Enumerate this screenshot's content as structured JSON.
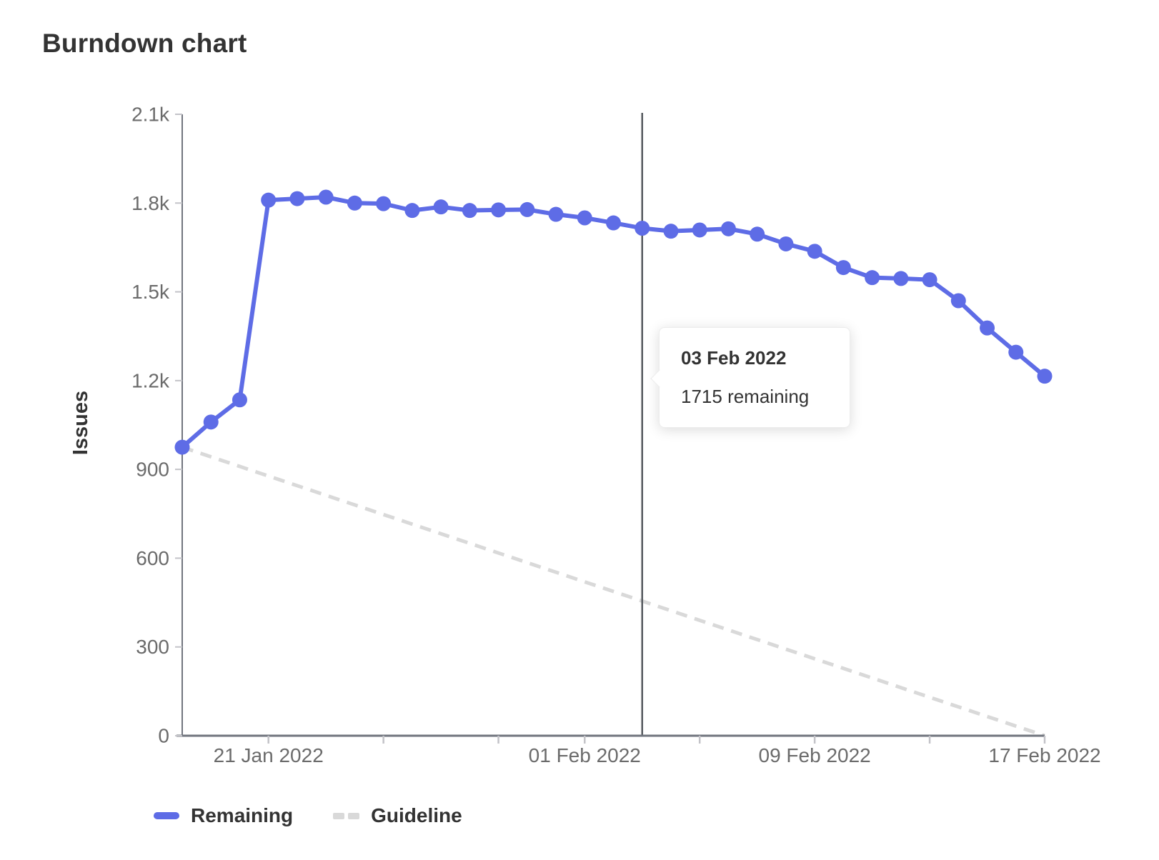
{
  "title": "Burndown chart",
  "tooltip": {
    "date": "03 Feb 2022",
    "text": "1715 remaining"
  },
  "legend": {
    "items": [
      {
        "label": "Remaining",
        "swatch": "solid"
      },
      {
        "label": "Guideline",
        "swatch": "dashed"
      }
    ]
  },
  "colors": {
    "remaining": "#5e6ce6",
    "guideline": "#d9d9d9",
    "axis": "#71757e",
    "tick": "#c3c3c8",
    "tick_label": "#6b6b6b",
    "text": "#333333",
    "today_line": "#565a5f"
  },
  "chart_data": {
    "type": "line",
    "title": "Burndown chart",
    "xlabel": "",
    "ylabel": "Issues",
    "x_range": [
      "18 Jan 2022",
      "17 Feb 2022"
    ],
    "ylim": [
      0,
      2100
    ],
    "grid": false,
    "legend_position": "bottom-left",
    "y_ticks": [
      {
        "v": 0,
        "label": "0"
      },
      {
        "v": 300,
        "label": "300"
      },
      {
        "v": 600,
        "label": "600"
      },
      {
        "v": 900,
        "label": "900"
      },
      {
        "v": 1200,
        "label": "1.2k"
      },
      {
        "v": 1500,
        "label": "1.5k"
      },
      {
        "v": 1800,
        "label": "1.8k"
      },
      {
        "v": 2100,
        "label": "2.1k"
      }
    ],
    "x_ticks": [
      {
        "day": 3,
        "label": "21 Jan 2022"
      },
      {
        "day": 7,
        "label": ""
      },
      {
        "day": 11,
        "label": ""
      },
      {
        "day": 14,
        "label": "01 Feb 2022"
      },
      {
        "day": 18,
        "label": ""
      },
      {
        "day": 22,
        "label": "09 Feb 2022"
      },
      {
        "day": 26,
        "label": ""
      },
      {
        "day": 30,
        "label": "17 Feb 2022"
      }
    ],
    "today_marker": {
      "day": 16,
      "date": "03 Feb 2022",
      "remaining": 1715
    },
    "series": [
      {
        "name": "Remaining",
        "style": "solid",
        "points": [
          {
            "day": 0,
            "date": "18 Jan 2022",
            "value": 975
          },
          {
            "day": 1,
            "date": "19 Jan 2022",
            "value": 1060
          },
          {
            "day": 2,
            "date": "20 Jan 2022",
            "value": 1135
          },
          {
            "day": 3,
            "date": "21 Jan 2022",
            "value": 1810
          },
          {
            "day": 4,
            "date": "22 Jan 2022",
            "value": 1815
          },
          {
            "day": 5,
            "date": "23 Jan 2022",
            "value": 1820
          },
          {
            "day": 6,
            "date": "24 Jan 2022",
            "value": 1800
          },
          {
            "day": 7,
            "date": "25 Jan 2022",
            "value": 1798
          },
          {
            "day": 8,
            "date": "26 Jan 2022",
            "value": 1775
          },
          {
            "day": 9,
            "date": "27 Jan 2022",
            "value": 1787
          },
          {
            "day": 10,
            "date": "28 Jan 2022",
            "value": 1775
          },
          {
            "day": 11,
            "date": "29 Jan 2022",
            "value": 1777
          },
          {
            "day": 12,
            "date": "30 Jan 2022",
            "value": 1778
          },
          {
            "day": 13,
            "date": "31 Jan 2022",
            "value": 1762
          },
          {
            "day": 14,
            "date": "01 Feb 2022",
            "value": 1750
          },
          {
            "day": 15,
            "date": "02 Feb 2022",
            "value": 1733
          },
          {
            "day": 16,
            "date": "03 Feb 2022",
            "value": 1715
          },
          {
            "day": 17,
            "date": "04 Feb 2022",
            "value": 1705
          },
          {
            "day": 18,
            "date": "05 Feb 2022",
            "value": 1709
          },
          {
            "day": 19,
            "date": "06 Feb 2022",
            "value": 1713
          },
          {
            "day": 20,
            "date": "07 Feb 2022",
            "value": 1695
          },
          {
            "day": 21,
            "date": "08 Feb 2022",
            "value": 1662
          },
          {
            "day": 22,
            "date": "09 Feb 2022",
            "value": 1637
          },
          {
            "day": 23,
            "date": "10 Feb 2022",
            "value": 1582
          },
          {
            "day": 24,
            "date": "11 Feb 2022",
            "value": 1548
          },
          {
            "day": 25,
            "date": "12 Feb 2022",
            "value": 1545
          },
          {
            "day": 26,
            "date": "13 Feb 2022",
            "value": 1541
          },
          {
            "day": 27,
            "date": "14 Feb 2022",
            "value": 1470
          },
          {
            "day": 28,
            "date": "15 Feb 2022",
            "value": 1378
          },
          {
            "day": 29,
            "date": "16 Feb 2022",
            "value": 1296
          },
          {
            "day": 30,
            "date": "17 Feb 2022",
            "value": 1215
          }
        ]
      },
      {
        "name": "Guideline",
        "style": "dashed",
        "points": [
          {
            "day": 0,
            "date": "18 Jan 2022",
            "value": 975
          },
          {
            "day": 30,
            "date": "17 Feb 2022",
            "value": 0
          }
        ]
      }
    ]
  }
}
